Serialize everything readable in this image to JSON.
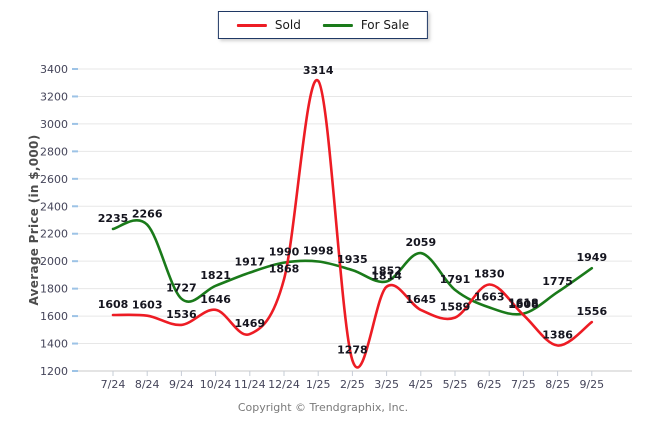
{
  "legend": {
    "items": [
      {
        "label": "Sold"
      },
      {
        "label": "For Sale"
      }
    ]
  },
  "chart_data": {
    "type": "line",
    "categories": [
      "7/24",
      "8/24",
      "9/24",
      "10/24",
      "11/24",
      "12/24",
      "1/25",
      "2/25",
      "3/25",
      "4/25",
      "5/25",
      "6/25",
      "7/25",
      "8/25",
      "9/25"
    ],
    "series": [
      {
        "name": "Sold",
        "color": "#ed1c24",
        "values": [
          1608,
          1603,
          1536,
          1646,
          1469,
          1868,
          3314,
          1278,
          1814,
          1645,
          1589,
          1830,
          1608,
          1386,
          1556
        ]
      },
      {
        "name": "For Sale",
        "color": "#1a7a1a",
        "values": [
          2235,
          2266,
          1727,
          1821,
          1917,
          1990,
          1998,
          1935,
          1852,
          2059,
          1791,
          1663,
          1618,
          1775,
          1949
        ]
      }
    ],
    "title": "",
    "xlabel": "",
    "ylabel": "Average Price (in $,000)",
    "ylim": [
      1200,
      3400
    ],
    "ytick_step": 200,
    "grid": true,
    "legend_position": "top-center",
    "smoothing": "spline"
  },
  "colors": {
    "sold_line": "#ed1c24",
    "forsale_line": "#1a7a1a",
    "gridline": "#e7e7e7",
    "axis_baseline": "#c9c9c9",
    "ytick_mark": "#9dc3e6",
    "xtick_mark": "#c6ccd6",
    "tick_text": "#45455a",
    "data_label_text": "#15151f",
    "legend_border": "#1f3864"
  },
  "footer": {
    "copyright": "Copyright © Trendgraphix, Inc."
  }
}
